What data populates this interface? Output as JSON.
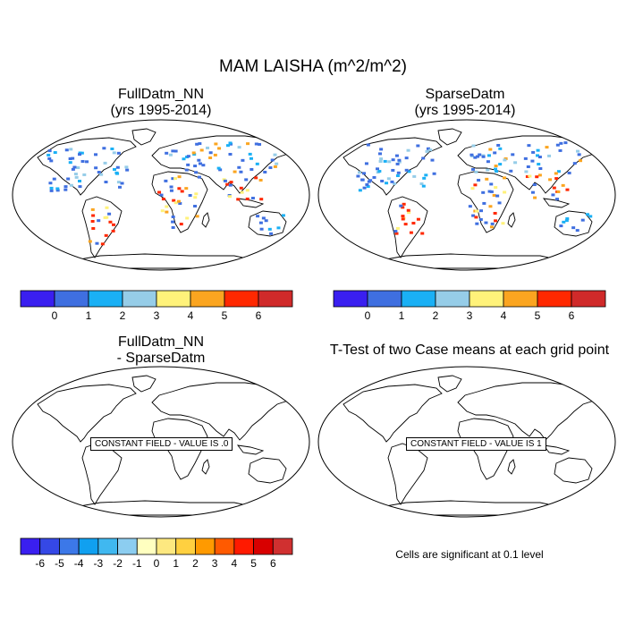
{
  "title": "MAM LAISHA (m^2/m^2)",
  "panels": [
    {
      "title_line1": "FullDatm_NN",
      "title_line2": "(yrs 1995-2014)"
    },
    {
      "title_line1": "SparseDatm",
      "title_line2": "(yrs 1995-2014)"
    },
    {
      "title_line1": "FullDatm_NN",
      "title_line2": "- SparseDatm",
      "constant_label": "CONSTANT FIELD - VALUE IS .0"
    },
    {
      "title_line1": "T-Test of two Case means at each grid point",
      "constant_label": "CONSTANT FIELD - VALUE IS 1"
    }
  ],
  "colorbar_top": {
    "colors": [
      "#3a1ff0",
      "#3f6fe0",
      "#1ab0f5",
      "#96cde8",
      "#fff27a",
      "#fba520",
      "#ff2800",
      "#d02a2a"
    ],
    "labels": [
      "0",
      "1",
      "2",
      "3",
      "4",
      "5",
      "6"
    ]
  },
  "colorbar_diff": {
    "colors": [
      "#3a1ff0",
      "#3548e6",
      "#3c78e8",
      "#10a0f0",
      "#40b8f0",
      "#8ccdf0",
      "#ffffc0",
      "#fde880",
      "#ffd040",
      "#ff9a00",
      "#ff5a00",
      "#ff1a00",
      "#d80000",
      "#d03030"
    ],
    "labels": [
      "-6",
      "-5",
      "-4",
      "-3",
      "-2",
      "-1",
      "0",
      "1",
      "2",
      "3",
      "4",
      "5",
      "6"
    ]
  },
  "significance_note": "Cells are significant at 0.1 level",
  "colors": {
    "land_outline": "#000000",
    "background": "#ffffff"
  }
}
